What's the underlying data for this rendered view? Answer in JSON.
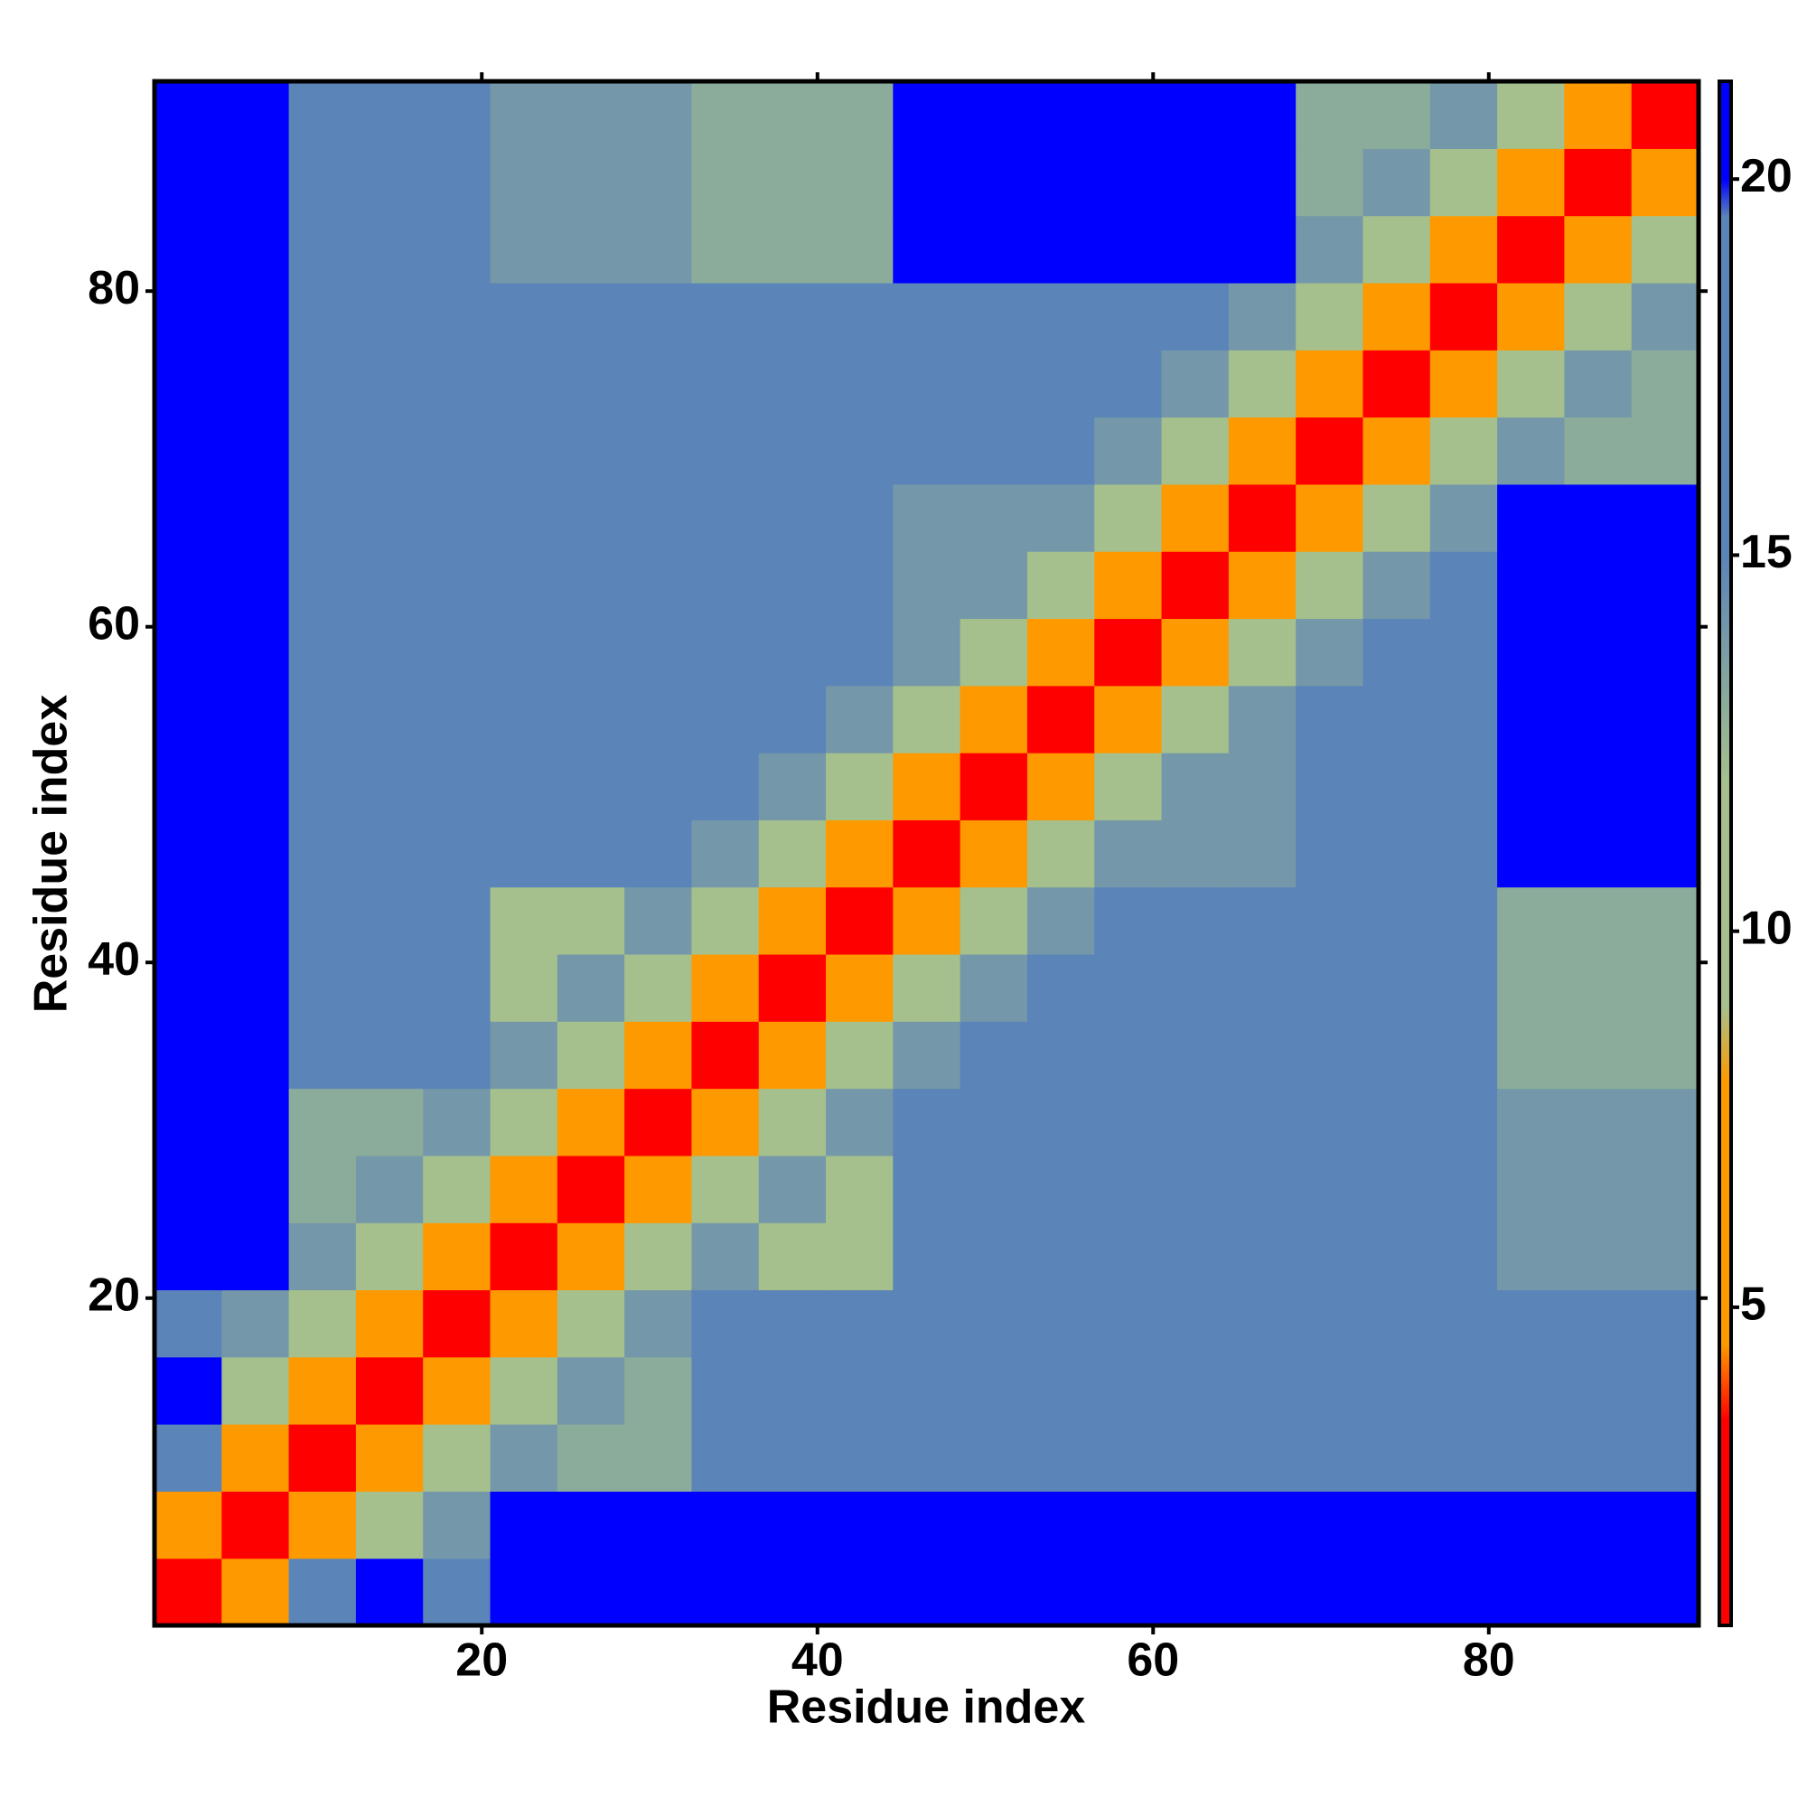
{
  "chart_data": {
    "type": "heatmap",
    "xlabel": "Residue index",
    "ylabel": "Residue index",
    "xlim": [
      0.5,
      92.5
    ],
    "ylim": [
      0.5,
      92.5
    ],
    "xticks": [
      20,
      40,
      60,
      80
    ],
    "yticks": [
      20,
      40,
      60,
      80
    ],
    "x_edges": [
      0.5,
      4.5,
      8.5,
      12.5,
      16.5,
      20.5,
      24.5,
      28.5,
      32.5,
      36.5,
      40.5,
      44.5,
      48.5,
      52.5,
      56.5,
      60.5,
      64.5,
      68.5,
      72.5,
      76.5,
      80.5,
      84.5,
      88.5,
      92.5
    ],
    "y_edges": [
      0.5,
      4.5,
      8.5,
      12.5,
      16.5,
      20.5,
      24.5,
      28.5,
      32.5,
      36.5,
      40.5,
      44.5,
      48.5,
      52.5,
      56.5,
      60.5,
      64.5,
      68.5,
      72.5,
      76.5,
      80.5,
      84.5,
      88.5,
      92.5
    ],
    "z": [
      [
        3,
        8,
        15,
        20,
        19,
        21,
        21,
        21,
        21,
        21,
        21,
        21,
        21,
        21,
        21,
        21,
        21,
        21,
        21,
        21,
        21,
        21,
        21
      ],
      [
        8,
        3,
        7,
        11,
        14,
        21,
        21,
        21,
        21,
        21,
        21,
        21,
        21,
        21,
        21,
        21,
        21,
        21,
        21,
        21,
        21,
        21,
        21
      ],
      [
        15,
        7,
        3,
        7,
        11,
        14,
        13,
        13,
        17,
        17,
        17,
        15,
        15,
        15,
        16,
        16,
        16,
        18,
        18,
        18,
        15,
        15,
        15
      ],
      [
        20,
        11,
        7,
        3,
        7,
        11,
        14,
        13,
        17,
        17,
        17,
        15,
        15,
        15,
        16,
        16,
        16,
        18,
        18,
        18,
        15,
        15,
        15
      ],
      [
        19,
        14,
        11,
        7,
        3,
        7,
        11,
        14,
        17,
        17,
        17,
        15,
        15,
        15,
        16,
        16,
        16,
        18,
        18,
        18,
        15,
        15,
        15
      ],
      [
        21,
        21,
        14,
        11,
        7,
        3,
        7,
        11,
        14,
        11,
        11,
        15,
        15,
        15,
        17,
        17,
        17,
        17,
        17,
        17,
        14,
        14,
        14
      ],
      [
        21,
        21,
        13,
        14,
        11,
        7,
        3,
        7,
        11,
        14,
        11,
        15,
        15,
        15,
        17,
        17,
        17,
        17,
        17,
        17,
        14,
        14,
        14
      ],
      [
        21,
        21,
        13,
        13,
        14,
        11,
        7,
        3,
        7,
        11,
        14,
        15,
        15,
        15,
        17,
        17,
        17,
        17,
        17,
        17,
        14,
        14,
        14
      ],
      [
        21,
        21,
        17,
        17,
        17,
        14,
        11,
        7,
        3,
        7,
        11,
        14,
        15,
        15,
        19,
        19,
        19,
        15,
        15,
        15,
        13,
        13,
        13
      ],
      [
        21,
        21,
        17,
        17,
        17,
        11,
        14,
        11,
        7,
        3,
        7,
        11,
        14,
        15,
        19,
        19,
        19,
        15,
        15,
        15,
        13,
        13,
        13
      ],
      [
        21,
        21,
        17,
        17,
        17,
        11,
        11,
        14,
        11,
        7,
        3,
        7,
        11,
        14,
        19,
        19,
        19,
        15,
        15,
        15,
        13,
        13,
        13
      ],
      [
        21,
        21,
        15,
        15,
        15,
        15,
        15,
        15,
        14,
        11,
        7,
        3,
        7,
        11,
        14,
        14,
        14,
        17,
        17,
        17,
        20,
        20,
        20
      ],
      [
        21,
        21,
        15,
        15,
        15,
        15,
        15,
        15,
        15,
        14,
        11,
        7,
        3,
        7,
        11,
        14,
        14,
        17,
        17,
        17,
        20,
        20,
        20
      ],
      [
        21,
        21,
        15,
        15,
        15,
        15,
        15,
        15,
        15,
        15,
        14,
        11,
        7,
        3,
        7,
        11,
        14,
        17,
        17,
        17,
        20,
        20,
        20
      ],
      [
        21,
        21,
        16,
        16,
        16,
        17,
        17,
        17,
        19,
        19,
        19,
        14,
        11,
        7,
        3,
        7,
        11,
        14,
        16,
        16,
        20,
        20,
        20
      ],
      [
        21,
        21,
        16,
        16,
        16,
        17,
        17,
        17,
        19,
        19,
        19,
        14,
        14,
        11,
        7,
        3,
        7,
        11,
        14,
        16,
        20,
        20,
        20
      ],
      [
        21,
        21,
        16,
        16,
        16,
        17,
        17,
        17,
        19,
        19,
        19,
        14,
        14,
        14,
        11,
        7,
        3,
        7,
        11,
        14,
        20,
        20,
        20
      ],
      [
        21,
        21,
        18,
        18,
        18,
        17,
        17,
        17,
        15,
        15,
        15,
        17,
        17,
        17,
        14,
        11,
        7,
        3,
        7,
        11,
        14,
        13,
        13
      ],
      [
        21,
        21,
        18,
        18,
        18,
        17,
        17,
        17,
        15,
        15,
        15,
        17,
        17,
        17,
        16,
        14,
        11,
        7,
        3,
        7,
        11,
        14,
        13
      ],
      [
        21,
        21,
        18,
        18,
        18,
        17,
        17,
        17,
        15,
        15,
        15,
        17,
        17,
        17,
        16,
        16,
        14,
        11,
        7,
        3,
        7,
        11,
        14
      ],
      [
        21,
        21,
        15,
        15,
        15,
        14,
        14,
        14,
        13,
        13,
        13,
        20,
        20,
        20,
        20,
        20,
        20,
        14,
        11,
        7,
        3,
        7,
        11
      ],
      [
        21,
        21,
        15,
        15,
        15,
        14,
        14,
        14,
        13,
        13,
        13,
        20,
        20,
        20,
        20,
        20,
        20,
        13,
        14,
        11,
        7,
        3,
        7
      ],
      [
        21,
        21,
        15,
        15,
        15,
        14,
        14,
        14,
        13,
        13,
        13,
        20,
        20,
        20,
        20,
        20,
        20,
        13,
        13,
        14,
        11,
        7,
        3
      ]
    ],
    "zlim": [
      0.77,
      21.3
    ],
    "zticks": [
      5,
      10,
      15,
      20
    ],
    "colorscale": [
      [
        0.77,
        "#ff0000"
      ],
      [
        3.5,
        "#ff0000"
      ],
      [
        4.5,
        "#ff9900"
      ],
      [
        8,
        "#ff9900"
      ],
      [
        9,
        "#a5c08c"
      ],
      [
        12,
        "#a5c08c"
      ],
      [
        15,
        "#5b84b8"
      ],
      [
        19.5,
        "#5b84b8"
      ],
      [
        20,
        "#0000ff"
      ],
      [
        21.3,
        "#0000ff"
      ]
    ]
  }
}
